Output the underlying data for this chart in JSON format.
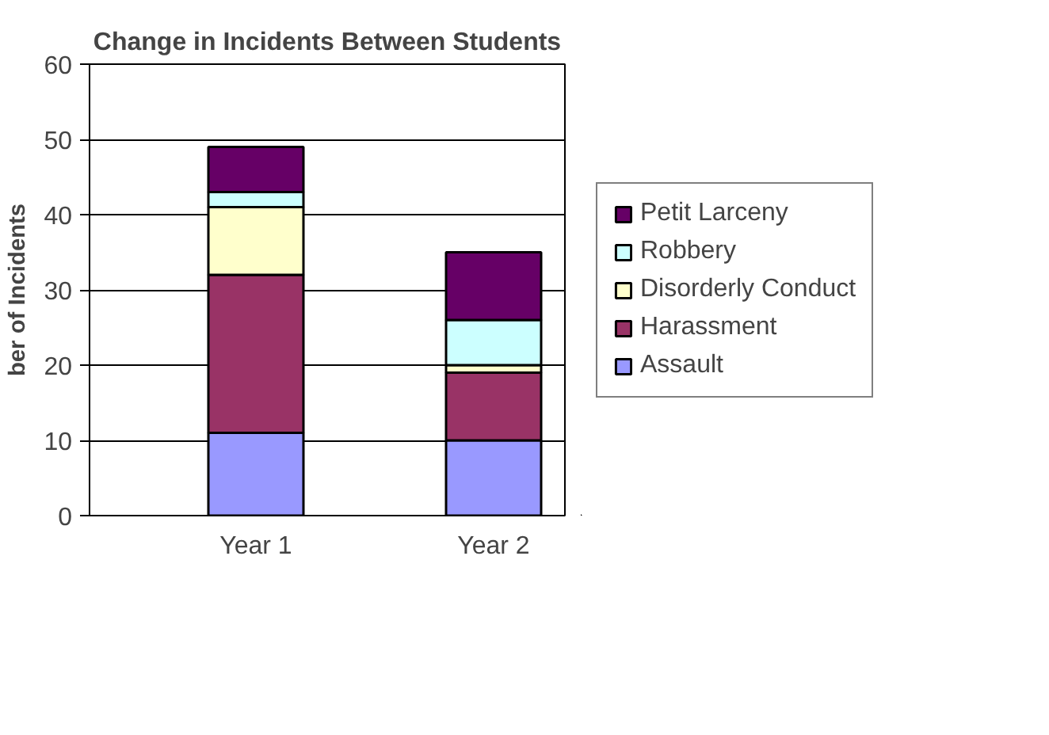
{
  "chart_data": {
    "type": "bar",
    "title": "Change in Incidents Between Students",
    "ylabel": "ber of Incidents",
    "categories": [
      "Year 1",
      "Year 2"
    ],
    "stacked": true,
    "ylim": [
      0,
      60
    ],
    "yticks": [
      0,
      10,
      20,
      30,
      40,
      50,
      60
    ],
    "grid": "y",
    "legend": "right",
    "series": [
      {
        "name": "Assault",
        "color": "#9999ff",
        "values": [
          11,
          10
        ]
      },
      {
        "name": "Harassment",
        "color": "#993366",
        "values": [
          21,
          9
        ]
      },
      {
        "name": "Disorderly Conduct",
        "color": "#ffffcc",
        "values": [
          9,
          1
        ]
      },
      {
        "name": "Robbery",
        "color": "#ccffff",
        "values": [
          2,
          6
        ]
      },
      {
        "name": "Petit Larceny",
        "color": "#660066",
        "values": [
          6,
          9
        ]
      }
    ]
  }
}
